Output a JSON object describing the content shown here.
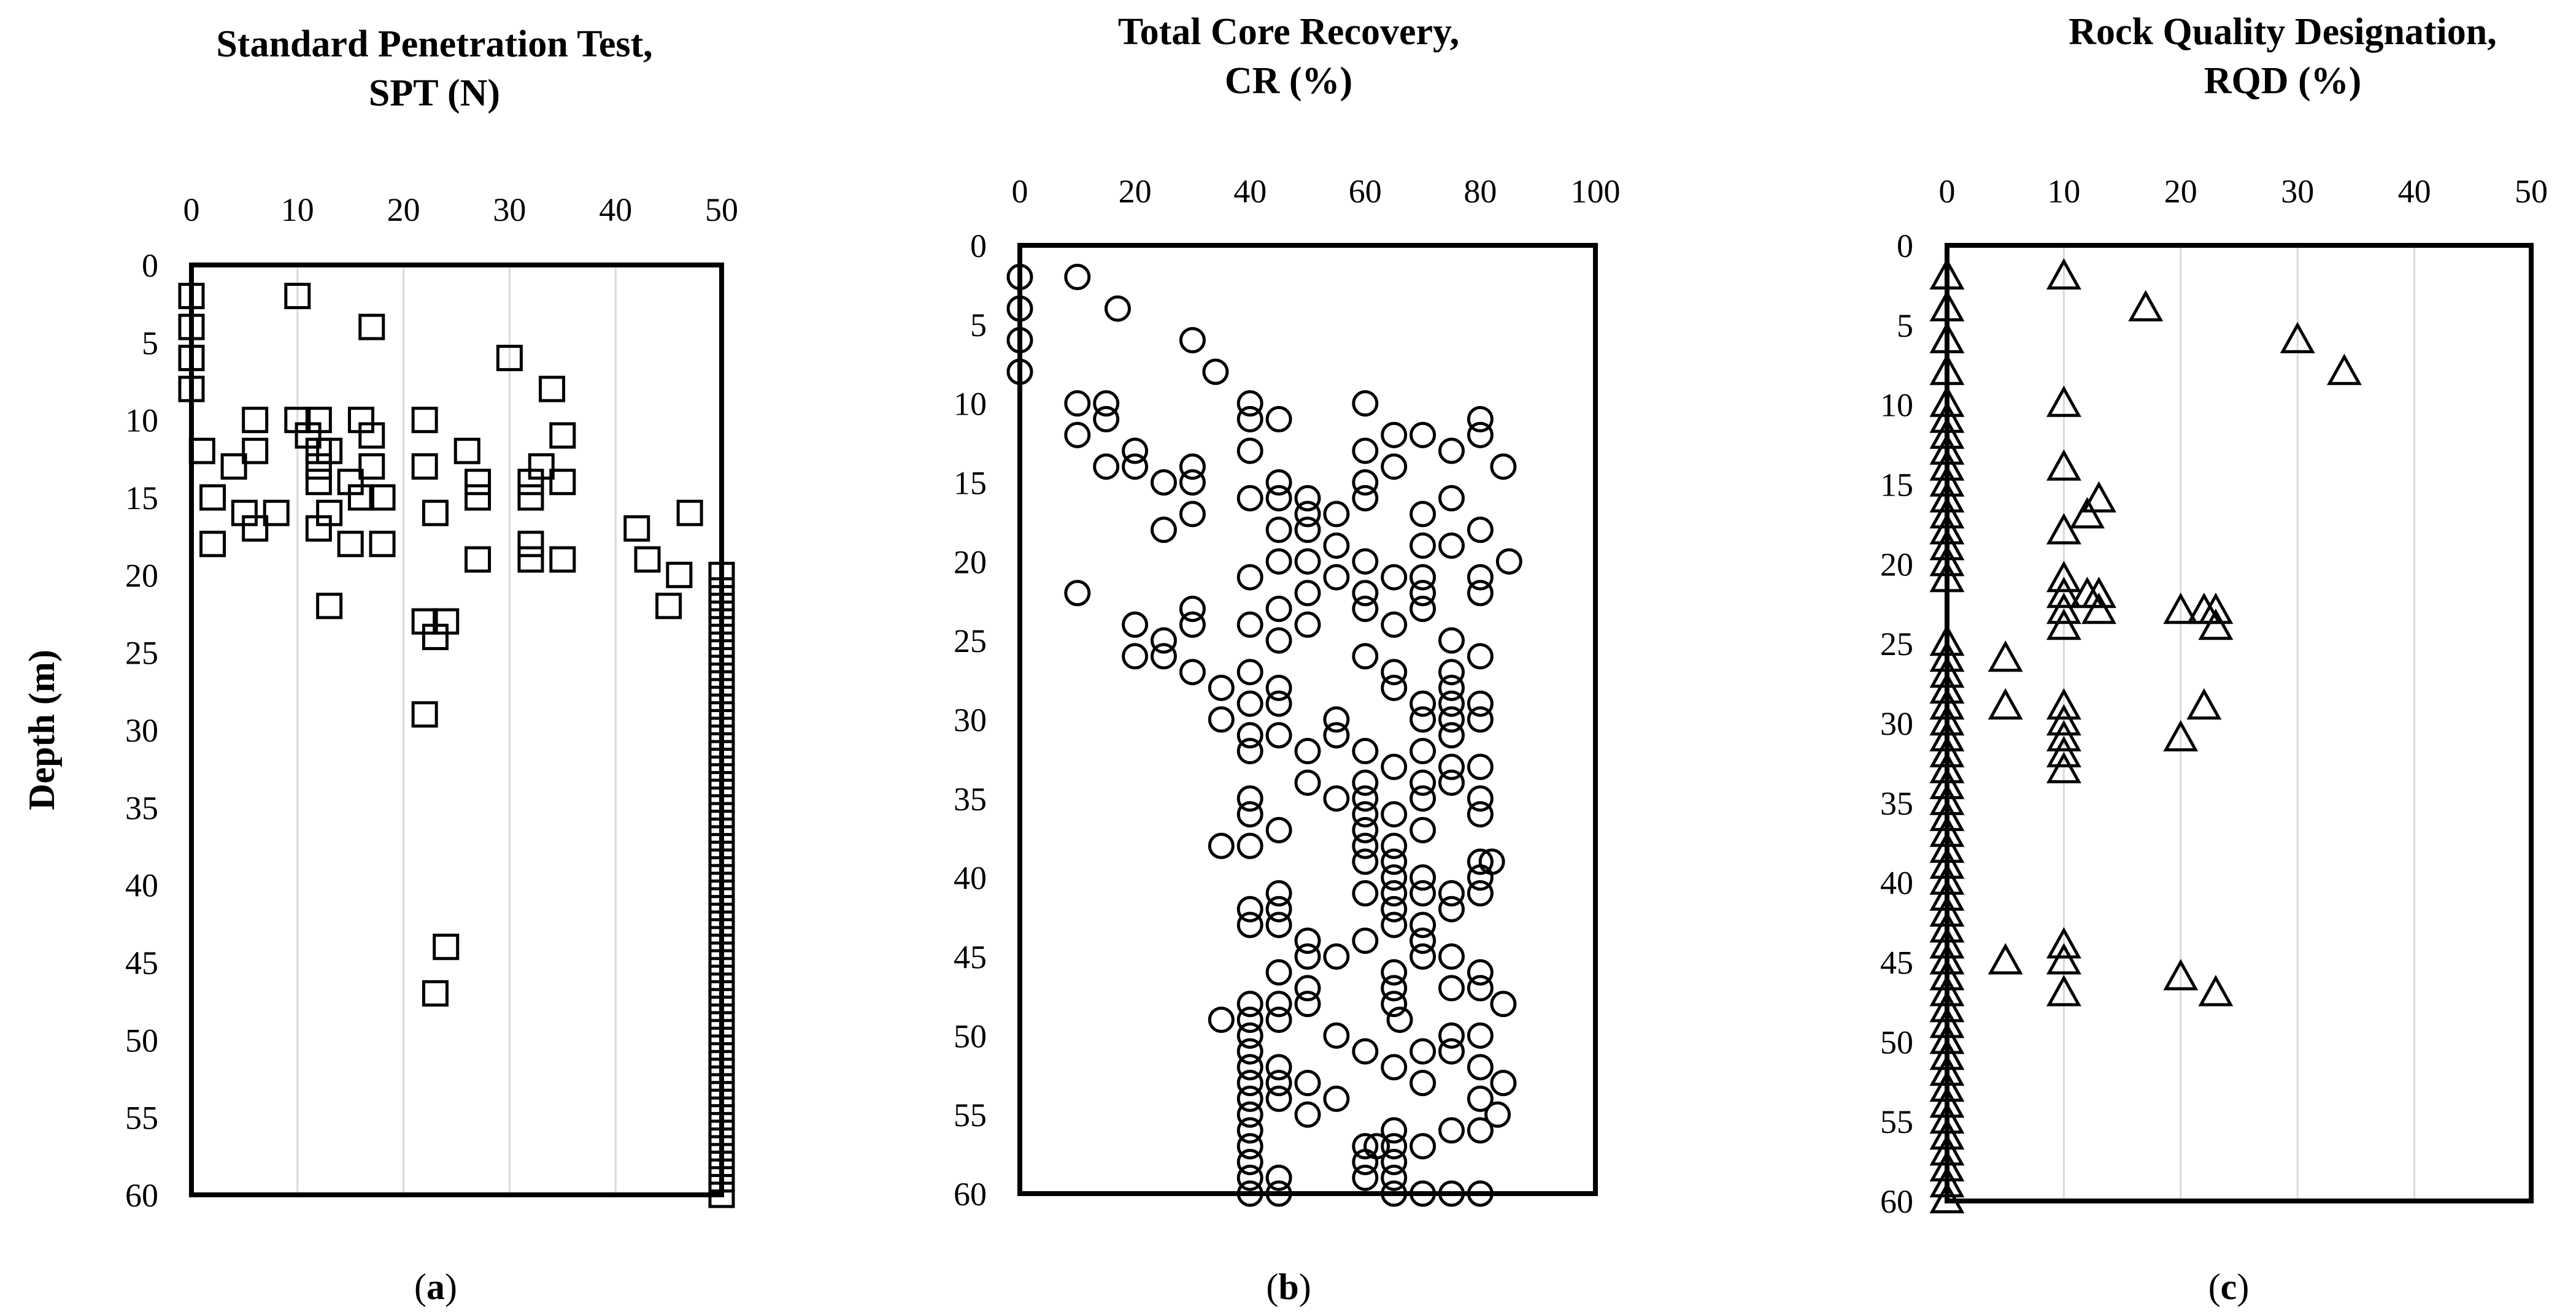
{
  "figure": {
    "y_axis_label": "Depth (m)"
  },
  "chart_data": [
    {
      "type": "scatter",
      "id": "a",
      "panel_label": "(a)",
      "panel_letter": "a",
      "title_lines": [
        "Standard Penetration Test,",
        "SPT (N)"
      ],
      "xlabel": "SPT (N)",
      "ylabel": "Depth (m)",
      "xlim": [
        0,
        50
      ],
      "ylim": [
        0,
        60
      ],
      "x_axis_position": "top",
      "y_inverted": true,
      "grid": "vertical",
      "x_ticks": [
        0,
        10,
        20,
        30,
        40,
        50
      ],
      "y_ticks": [
        0,
        5,
        10,
        15,
        20,
        25,
        30,
        35,
        40,
        45,
        50,
        55,
        60
      ],
      "marker": "square",
      "points": [
        [
          0,
          2
        ],
        [
          0,
          4
        ],
        [
          0,
          6
        ],
        [
          0,
          8
        ],
        [
          10,
          2
        ],
        [
          17,
          4
        ],
        [
          30,
          6
        ],
        [
          34,
          8
        ],
        [
          6,
          10
        ],
        [
          10,
          10
        ],
        [
          12,
          10
        ],
        [
          16,
          10
        ],
        [
          22,
          10
        ],
        [
          35,
          11
        ],
        [
          17,
          11
        ],
        [
          11,
          11
        ],
        [
          1,
          12
        ],
        [
          6,
          12
        ],
        [
          12,
          12
        ],
        [
          13,
          12
        ],
        [
          26,
          12
        ],
        [
          4,
          13
        ],
        [
          12,
          13
        ],
        [
          17,
          13
        ],
        [
          22,
          13
        ],
        [
          33,
          13
        ],
        [
          12,
          14
        ],
        [
          15,
          14
        ],
        [
          27,
          14
        ],
        [
          32,
          14
        ],
        [
          35,
          14
        ],
        [
          2,
          15
        ],
        [
          16,
          15
        ],
        [
          18,
          15
        ],
        [
          27,
          15
        ],
        [
          32,
          15
        ],
        [
          5,
          16
        ],
        [
          8,
          16
        ],
        [
          13,
          16
        ],
        [
          23,
          16
        ],
        [
          47,
          16
        ],
        [
          6,
          17
        ],
        [
          12,
          17
        ],
        [
          42,
          17
        ],
        [
          2,
          18
        ],
        [
          15,
          18
        ],
        [
          18,
          18
        ],
        [
          32,
          18
        ],
        [
          27,
          19
        ],
        [
          32,
          19
        ],
        [
          35,
          19
        ],
        [
          43,
          19
        ],
        [
          46,
          20
        ],
        [
          13,
          22
        ],
        [
          45,
          22
        ],
        [
          22,
          23
        ],
        [
          24,
          23
        ],
        [
          23,
          24
        ],
        [
          22,
          29
        ],
        [
          24,
          44
        ],
        [
          23,
          47
        ]
      ],
      "refusal_points": {
        "x": 50,
        "depths": [
          20,
          21,
          22,
          23,
          24,
          25,
          26,
          27,
          28,
          29,
          30,
          31,
          32,
          33,
          34,
          35,
          36,
          37,
          38,
          39,
          40,
          41,
          42,
          43,
          44,
          45,
          46,
          47,
          48,
          49,
          50,
          51,
          52,
          53,
          54,
          55,
          56,
          57,
          58,
          59,
          60
        ]
      }
    },
    {
      "type": "scatter",
      "id": "b",
      "panel_label": "(b)",
      "panel_letter": "b",
      "title_lines": [
        "Total Core Recovery,",
        "CR (%)"
      ],
      "xlabel": "CR (%)",
      "ylabel": "Depth (m)",
      "xlim": [
        0,
        100
      ],
      "ylim": [
        0,
        60
      ],
      "x_axis_position": "top",
      "y_inverted": true,
      "grid": "none",
      "x_ticks": [
        0,
        20,
        40,
        60,
        80,
        100
      ],
      "y_ticks": [
        0,
        5,
        10,
        15,
        20,
        25,
        30,
        35,
        40,
        45,
        50,
        55,
        60
      ],
      "marker": "circle",
      "points": [
        [
          0,
          2
        ],
        [
          0,
          4
        ],
        [
          0,
          6
        ],
        [
          0,
          8
        ],
        [
          10,
          2
        ],
        [
          17,
          4
        ],
        [
          30,
          6
        ],
        [
          34,
          8
        ],
        [
          10,
          10
        ],
        [
          15,
          10
        ],
        [
          40,
          10
        ],
        [
          60,
          10
        ],
        [
          10,
          12
        ],
        [
          15,
          11
        ],
        [
          40,
          11
        ],
        [
          45,
          11
        ],
        [
          80,
          11
        ],
        [
          20,
          13
        ],
        [
          40,
          13
        ],
        [
          60,
          13
        ],
        [
          65,
          12
        ],
        [
          70,
          12
        ],
        [
          75,
          13
        ],
        [
          80,
          12
        ],
        [
          15,
          14
        ],
        [
          20,
          14
        ],
        [
          30,
          14
        ],
        [
          45,
          15
        ],
        [
          65,
          14
        ],
        [
          84,
          14
        ],
        [
          25,
          15
        ],
        [
          30,
          15
        ],
        [
          60,
          15
        ],
        [
          40,
          16
        ],
        [
          45,
          16
        ],
        [
          50,
          16
        ],
        [
          60,
          16
        ],
        [
          75,
          16
        ],
        [
          30,
          17
        ],
        [
          50,
          17
        ],
        [
          55,
          17
        ],
        [
          70,
          17
        ],
        [
          25,
          18
        ],
        [
          45,
          18
        ],
        [
          50,
          18
        ],
        [
          80,
          18
        ],
        [
          55,
          19
        ],
        [
          70,
          19
        ],
        [
          75,
          19
        ],
        [
          45,
          20
        ],
        [
          50,
          20
        ],
        [
          60,
          20
        ],
        [
          85,
          20
        ],
        [
          40,
          21
        ],
        [
          55,
          21
        ],
        [
          65,
          21
        ],
        [
          70,
          21
        ],
        [
          80,
          21
        ],
        [
          10,
          22
        ],
        [
          50,
          22
        ],
        [
          60,
          22
        ],
        [
          70,
          22
        ],
        [
          80,
          22
        ],
        [
          30,
          23
        ],
        [
          45,
          23
        ],
        [
          60,
          23
        ],
        [
          70,
          23
        ],
        [
          30,
          24
        ],
        [
          40,
          24
        ],
        [
          50,
          24
        ],
        [
          65,
          24
        ],
        [
          20,
          24
        ],
        [
          25,
          25
        ],
        [
          45,
          25
        ],
        [
          75,
          25
        ],
        [
          20,
          26
        ],
        [
          25,
          26
        ],
        [
          60,
          26
        ],
        [
          80,
          26
        ],
        [
          30,
          27
        ],
        [
          40,
          27
        ],
        [
          65,
          27
        ],
        [
          75,
          27
        ],
        [
          35,
          28
        ],
        [
          45,
          28
        ],
        [
          65,
          28
        ],
        [
          75,
          28
        ],
        [
          40,
          29
        ],
        [
          45,
          29
        ],
        [
          70,
          29
        ],
        [
          75,
          29
        ],
        [
          80,
          29
        ],
        [
          35,
          30
        ],
        [
          55,
          30
        ],
        [
          70,
          30
        ],
        [
          75,
          30
        ],
        [
          80,
          30
        ],
        [
          40,
          31
        ],
        [
          45,
          31
        ],
        [
          55,
          31
        ],
        [
          75,
          31
        ],
        [
          40,
          32
        ],
        [
          50,
          32
        ],
        [
          60,
          32
        ],
        [
          70,
          32
        ],
        [
          65,
          33
        ],
        [
          75,
          33
        ],
        [
          80,
          33
        ],
        [
          50,
          34
        ],
        [
          60,
          34
        ],
        [
          70,
          34
        ],
        [
          75,
          34
        ],
        [
          40,
          35
        ],
        [
          55,
          35
        ],
        [
          60,
          35
        ],
        [
          70,
          35
        ],
        [
          80,
          35
        ],
        [
          40,
          36
        ],
        [
          60,
          36
        ],
        [
          65,
          36
        ],
        [
          80,
          36
        ],
        [
          45,
          37
        ],
        [
          60,
          37
        ],
        [
          70,
          37
        ],
        [
          35,
          38
        ],
        [
          40,
          38
        ],
        [
          60,
          38
        ],
        [
          65,
          38
        ],
        [
          60,
          39
        ],
        [
          65,
          39
        ],
        [
          80,
          39
        ],
        [
          82,
          39
        ],
        [
          65,
          40
        ],
        [
          70,
          40
        ],
        [
          80,
          40
        ],
        [
          45,
          41
        ],
        [
          60,
          41
        ],
        [
          65,
          41
        ],
        [
          70,
          41
        ],
        [
          75,
          41
        ],
        [
          80,
          41
        ],
        [
          40,
          42
        ],
        [
          45,
          42
        ],
        [
          65,
          42
        ],
        [
          75,
          42
        ],
        [
          40,
          43
        ],
        [
          45,
          43
        ],
        [
          65,
          43
        ],
        [
          70,
          43
        ],
        [
          50,
          44
        ],
        [
          60,
          44
        ],
        [
          70,
          44
        ],
        [
          50,
          45
        ],
        [
          55,
          45
        ],
        [
          75,
          45
        ],
        [
          70,
          45
        ],
        [
          45,
          46
        ],
        [
          65,
          46
        ],
        [
          80,
          46
        ],
        [
          50,
          47
        ],
        [
          65,
          47
        ],
        [
          75,
          47
        ],
        [
          80,
          47
        ],
        [
          40,
          48
        ],
        [
          45,
          48
        ],
        [
          50,
          48
        ],
        [
          65,
          48
        ],
        [
          84,
          48
        ],
        [
          35,
          49
        ],
        [
          40,
          49
        ],
        [
          45,
          49
        ],
        [
          66,
          49
        ],
        [
          40,
          50
        ],
        [
          55,
          50
        ],
        [
          75,
          50
        ],
        [
          80,
          50
        ],
        [
          40,
          51
        ],
        [
          60,
          51
        ],
        [
          70,
          51
        ],
        [
          75,
          51
        ],
        [
          40,
          52
        ],
        [
          45,
          52
        ],
        [
          65,
          52
        ],
        [
          80,
          52
        ],
        [
          40,
          53
        ],
        [
          45,
          53
        ],
        [
          50,
          53
        ],
        [
          70,
          53
        ],
        [
          84,
          53
        ],
        [
          40,
          54
        ],
        [
          45,
          54
        ],
        [
          55,
          54
        ],
        [
          80,
          54
        ],
        [
          40,
          55
        ],
        [
          50,
          55
        ],
        [
          83,
          55
        ],
        [
          40,
          56
        ],
        [
          65,
          56
        ],
        [
          75,
          56
        ],
        [
          80,
          56
        ],
        [
          40,
          57
        ],
        [
          60,
          57
        ],
        [
          62,
          57
        ],
        [
          65,
          57
        ],
        [
          70,
          57
        ],
        [
          40,
          58
        ],
        [
          60,
          58
        ],
        [
          65,
          58
        ],
        [
          40,
          59
        ],
        [
          45,
          59
        ],
        [
          60,
          59
        ],
        [
          65,
          59
        ],
        [
          40,
          60
        ],
        [
          45,
          60
        ],
        [
          65,
          60
        ],
        [
          70,
          60
        ],
        [
          75,
          60
        ],
        [
          80,
          60
        ]
      ]
    },
    {
      "type": "scatter",
      "id": "c",
      "panel_label": "(c)",
      "panel_letter": "c",
      "title_lines": [
        "Rock Quality Designation,",
        "RQD (%)"
      ],
      "xlabel": "RQD (%)",
      "ylabel": "Depth (m)",
      "xlim": [
        0,
        50
      ],
      "ylim": [
        0,
        60
      ],
      "x_axis_position": "top",
      "y_inverted": true,
      "grid": "vertical",
      "x_ticks": [
        0,
        10,
        20,
        30,
        40,
        50
      ],
      "y_ticks": [
        0,
        5,
        10,
        15,
        20,
        25,
        30,
        35,
        40,
        45,
        50,
        55,
        60
      ],
      "marker": "triangle",
      "points": [
        [
          10,
          2
        ],
        [
          17,
          4
        ],
        [
          30,
          6
        ],
        [
          34,
          8
        ],
        [
          10,
          10
        ],
        [
          10,
          14
        ],
        [
          13,
          16
        ],
        [
          12,
          17
        ],
        [
          10,
          18
        ],
        [
          10,
          21
        ],
        [
          10,
          22
        ],
        [
          12,
          22
        ],
        [
          13,
          22
        ],
        [
          10,
          23
        ],
        [
          13,
          23
        ],
        [
          20,
          23
        ],
        [
          22,
          23
        ],
        [
          23,
          23
        ],
        [
          10,
          24
        ],
        [
          23,
          24
        ],
        [
          5,
          26
        ],
        [
          5,
          29
        ],
        [
          10,
          29
        ],
        [
          22,
          29
        ],
        [
          10,
          30
        ],
        [
          10,
          31
        ],
        [
          20,
          31
        ],
        [
          10,
          32
        ],
        [
          10,
          33
        ],
        [
          10,
          44
        ],
        [
          5,
          45
        ],
        [
          10,
          45
        ],
        [
          20,
          46
        ],
        [
          10,
          47
        ],
        [
          23,
          47
        ]
      ],
      "zero_points": {
        "x": 0,
        "depths": [
          2,
          4,
          6,
          8,
          10,
          11,
          12,
          13,
          14,
          15,
          16,
          17,
          18,
          19,
          20,
          21,
          25,
          26,
          27,
          28,
          29,
          30,
          31,
          32,
          33,
          34,
          35,
          36,
          37,
          38,
          39,
          40,
          41,
          42,
          43,
          44,
          45,
          46,
          47,
          48,
          49,
          50,
          51,
          52,
          53,
          54,
          55,
          56,
          57,
          58,
          59,
          60
        ]
      }
    }
  ]
}
